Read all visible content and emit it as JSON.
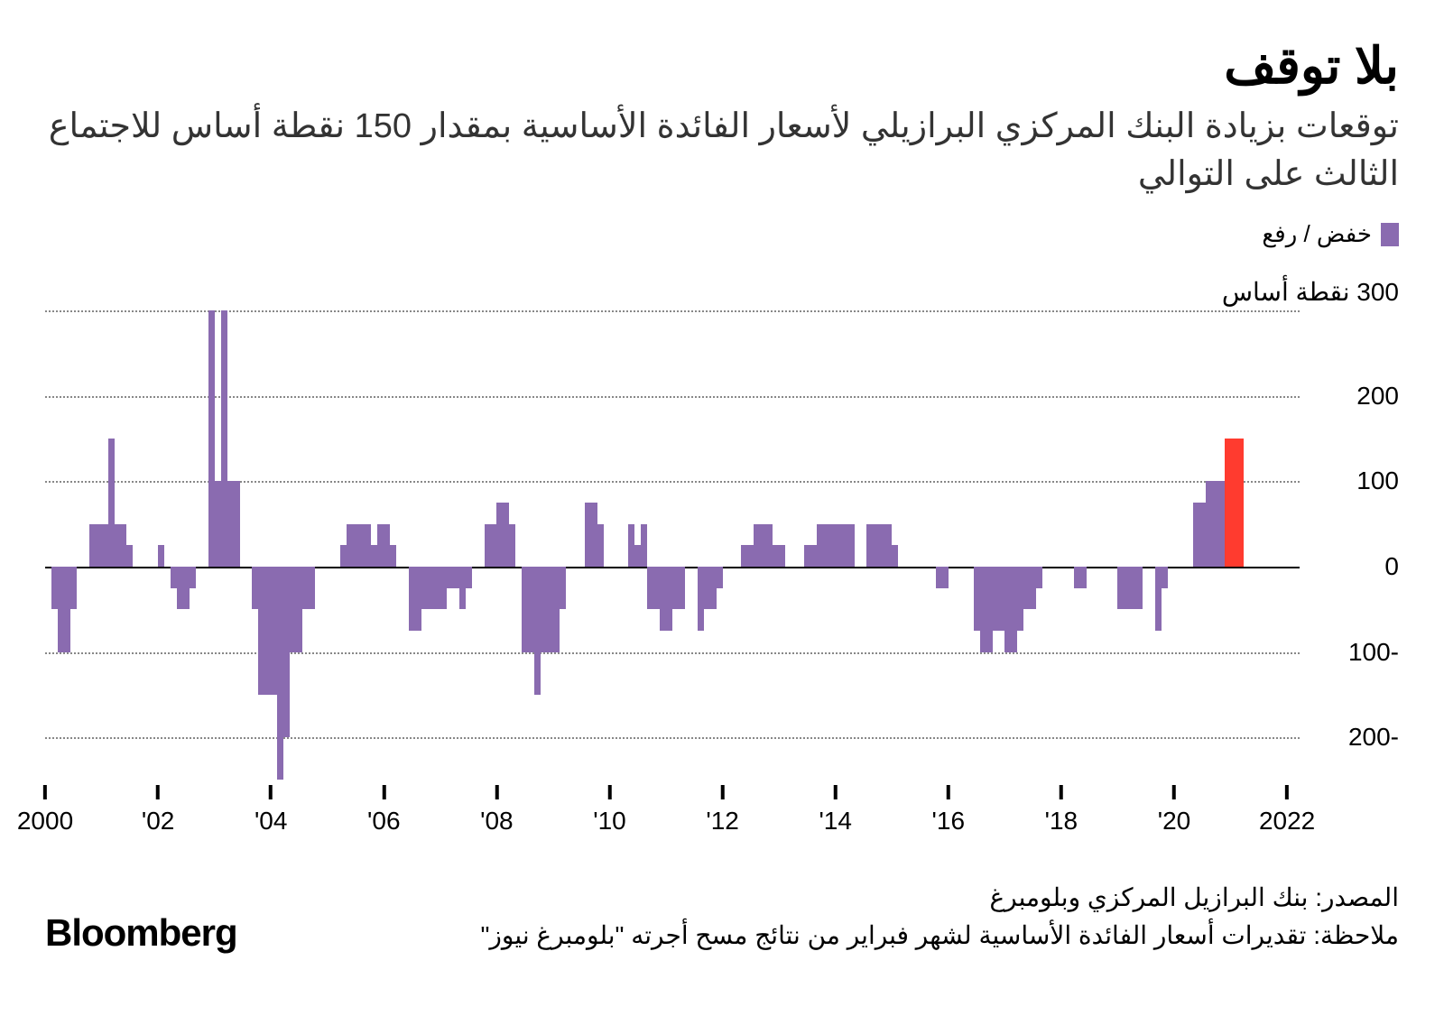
{
  "title": "بلا توقف",
  "subtitle": "توقعات بزيادة البنك المركزي البرازيلي لأسعار الفائدة الأساسية بمقدار 150 نقطة أساس للاجتماع الثالث على التوالي",
  "legend": {
    "label": "خفض / رفع",
    "swatch_color": "#8a6bb0"
  },
  "unit_label": "300 نقطة أساس",
  "source": "المصدر: بنك البرازيل المركزي وبلومبرغ",
  "note": "ملاحظة: تقديرات أسعار الفائدة الأساسية لشهر فبراير من نتائج مسح أجرته \"بلومبرغ نيوز\"",
  "logo": "Bloomberg",
  "chart": {
    "type": "bar",
    "colors": {
      "primary": "#8a6bb0",
      "highlight": "#ff3b2f",
      "grid": "#888888",
      "zero": "#000000",
      "bg": "#ffffff"
    },
    "ylim": [
      -250,
      300
    ],
    "y_ticks": [
      300,
      200,
      100,
      0,
      -100,
      -200
    ],
    "y_tick_labels": [
      "",
      "200",
      "100",
      "0",
      "-100",
      "-200"
    ],
    "x_ticks": [
      {
        "pos": 0,
        "label": "2000"
      },
      {
        "pos": 18,
        "label": "'02"
      },
      {
        "pos": 36,
        "label": "'04"
      },
      {
        "pos": 54,
        "label": "'06"
      },
      {
        "pos": 72,
        "label": "'08"
      },
      {
        "pos": 90,
        "label": "'10"
      },
      {
        "pos": 108,
        "label": "'12"
      },
      {
        "pos": 126,
        "label": "'14"
      },
      {
        "pos": 144,
        "label": "'16"
      },
      {
        "pos": 162,
        "label": "'18"
      },
      {
        "pos": 180,
        "label": "'20"
      },
      {
        "pos": 198,
        "label": "2022"
      }
    ],
    "n_slots": 200,
    "bars": [
      {
        "x": 1,
        "v": -50
      },
      {
        "x": 2,
        "v": -100
      },
      {
        "x": 3,
        "v": -100
      },
      {
        "x": 4,
        "v": -50
      },
      {
        "x": 7,
        "v": 50
      },
      {
        "x": 8,
        "v": 50
      },
      {
        "x": 9,
        "v": 50
      },
      {
        "x": 10,
        "v": 150
      },
      {
        "x": 11,
        "v": 50
      },
      {
        "x": 12,
        "v": 50
      },
      {
        "x": 13,
        "v": 25
      },
      {
        "x": 18,
        "v": 25
      },
      {
        "x": 20,
        "v": -25
      },
      {
        "x": 21,
        "v": -50
      },
      {
        "x": 22,
        "v": -50
      },
      {
        "x": 23,
        "v": -25
      },
      {
        "x": 26,
        "v": 300
      },
      {
        "x": 27,
        "v": 100
      },
      {
        "x": 28,
        "v": 300
      },
      {
        "x": 29,
        "v": 100
      },
      {
        "x": 30,
        "v": 100
      },
      {
        "x": 33,
        "v": -50
      },
      {
        "x": 34,
        "v": -150
      },
      {
        "x": 35,
        "v": -150
      },
      {
        "x": 36,
        "v": -150
      },
      {
        "x": 37,
        "v": -250
      },
      {
        "x": 38,
        "v": -200
      },
      {
        "x": 39,
        "v": -100
      },
      {
        "x": 40,
        "v": -100
      },
      {
        "x": 41,
        "v": -50
      },
      {
        "x": 42,
        "v": -50
      },
      {
        "x": 47,
        "v": 25
      },
      {
        "x": 48,
        "v": 50
      },
      {
        "x": 49,
        "v": 50
      },
      {
        "x": 50,
        "v": 50
      },
      {
        "x": 51,
        "v": 50
      },
      {
        "x": 52,
        "v": 25
      },
      {
        "x": 53,
        "v": 50
      },
      {
        "x": 54,
        "v": 50
      },
      {
        "x": 55,
        "v": 25
      },
      {
        "x": 58,
        "v": -75
      },
      {
        "x": 59,
        "v": -75
      },
      {
        "x": 60,
        "v": -50
      },
      {
        "x": 61,
        "v": -50
      },
      {
        "x": 62,
        "v": -50
      },
      {
        "x": 63,
        "v": -50
      },
      {
        "x": 64,
        "v": -25
      },
      {
        "x": 65,
        "v": -25
      },
      {
        "x": 66,
        "v": -50
      },
      {
        "x": 67,
        "v": -25
      },
      {
        "x": 70,
        "v": 50
      },
      {
        "x": 71,
        "v": 50
      },
      {
        "x": 72,
        "v": 75
      },
      {
        "x": 73,
        "v": 75
      },
      {
        "x": 74,
        "v": 50
      },
      {
        "x": 76,
        "v": -100
      },
      {
        "x": 77,
        "v": -100
      },
      {
        "x": 78,
        "v": -150
      },
      {
        "x": 79,
        "v": -100
      },
      {
        "x": 80,
        "v": -100
      },
      {
        "x": 81,
        "v": -100
      },
      {
        "x": 82,
        "v": -50
      },
      {
        "x": 86,
        "v": 75
      },
      {
        "x": 87,
        "v": 75
      },
      {
        "x": 88,
        "v": 50
      },
      {
        "x": 93,
        "v": 50
      },
      {
        "x": 94,
        "v": 25
      },
      {
        "x": 95,
        "v": 50
      },
      {
        "x": 96,
        "v": -50
      },
      {
        "x": 97,
        "v": -50
      },
      {
        "x": 98,
        "v": -75
      },
      {
        "x": 99,
        "v": -75
      },
      {
        "x": 100,
        "v": -50
      },
      {
        "x": 101,
        "v": -50
      },
      {
        "x": 104,
        "v": -75
      },
      {
        "x": 105,
        "v": -50
      },
      {
        "x": 106,
        "v": -50
      },
      {
        "x": 107,
        "v": -25
      },
      {
        "x": 111,
        "v": 25
      },
      {
        "x": 112,
        "v": 25
      },
      {
        "x": 113,
        "v": 50
      },
      {
        "x": 114,
        "v": 50
      },
      {
        "x": 115,
        "v": 50
      },
      {
        "x": 116,
        "v": 25
      },
      {
        "x": 117,
        "v": 25
      },
      {
        "x": 121,
        "v": 25
      },
      {
        "x": 122,
        "v": 25
      },
      {
        "x": 123,
        "v": 50
      },
      {
        "x": 124,
        "v": 50
      },
      {
        "x": 125,
        "v": 50
      },
      {
        "x": 126,
        "v": 50
      },
      {
        "x": 127,
        "v": 50
      },
      {
        "x": 128,
        "v": 50
      },
      {
        "x": 131,
        "v": 50
      },
      {
        "x": 132,
        "v": 50
      },
      {
        "x": 133,
        "v": 50
      },
      {
        "x": 134,
        "v": 50
      },
      {
        "x": 135,
        "v": 25
      },
      {
        "x": 142,
        "v": -25
      },
      {
        "x": 143,
        "v": -25
      },
      {
        "x": 148,
        "v": -75
      },
      {
        "x": 149,
        "v": -100
      },
      {
        "x": 150,
        "v": -100
      },
      {
        "x": 151,
        "v": -75
      },
      {
        "x": 152,
        "v": -75
      },
      {
        "x": 153,
        "v": -100
      },
      {
        "x": 154,
        "v": -100
      },
      {
        "x": 155,
        "v": -75
      },
      {
        "x": 156,
        "v": -50
      },
      {
        "x": 157,
        "v": -50
      },
      {
        "x": 158,
        "v": -25
      },
      {
        "x": 164,
        "v": -25
      },
      {
        "x": 165,
        "v": -25
      },
      {
        "x": 171,
        "v": -50
      },
      {
        "x": 172,
        "v": -50
      },
      {
        "x": 173,
        "v": -50
      },
      {
        "x": 174,
        "v": -50
      },
      {
        "x": 177,
        "v": -75
      },
      {
        "x": 178,
        "v": -25
      },
      {
        "x": 183,
        "v": 75
      },
      {
        "x": 184,
        "v": 75
      },
      {
        "x": 185,
        "v": 100
      },
      {
        "x": 186,
        "v": 100
      },
      {
        "x": 187,
        "v": 100
      },
      {
        "x": 188,
        "v": 150,
        "hl": true
      },
      {
        "x": 189,
        "v": 150,
        "hl": true
      },
      {
        "x": 190,
        "v": 150,
        "hl": true
      }
    ]
  }
}
